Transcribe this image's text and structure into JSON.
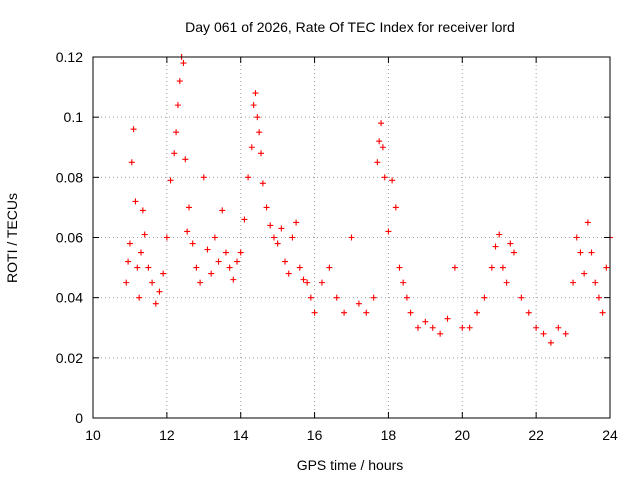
{
  "chart_data": {
    "type": "scatter",
    "title": "Day 061 of 2026, Rate Of TEC Index for receiver lord",
    "xlabel": "GPS time / hours",
    "ylabel": "ROTI / TECUs",
    "xlim": [
      10,
      24
    ],
    "ylim": [
      0,
      0.12
    ],
    "x_ticks": [
      "10",
      "12",
      "14",
      "16",
      "18",
      "20",
      "22",
      "24"
    ],
    "y_ticks": [
      "0",
      "0.02",
      "0.04",
      "0.06",
      "0.08",
      "0.1",
      "0.12"
    ],
    "grid": true,
    "marker": "plus",
    "color": "#ff0000",
    "series": [
      {
        "x": [
          10.9,
          10.95,
          11.0,
          11.05,
          11.1,
          11.15,
          11.2,
          11.25,
          11.3,
          11.35,
          11.4,
          11.5,
          11.6,
          11.7,
          11.8,
          11.9,
          12.0,
          12.1,
          12.2,
          12.25,
          12.3,
          12.35,
          12.4,
          12.45,
          12.5,
          12.55,
          12.6,
          12.7,
          12.8,
          12.9,
          13.0,
          13.1,
          13.2,
          13.3,
          13.4,
          13.5,
          13.6,
          13.7,
          13.8,
          13.9,
          14.0,
          14.1,
          14.2,
          14.3,
          14.35,
          14.4,
          14.45,
          14.5,
          14.55,
          14.6,
          14.7,
          14.8,
          14.9,
          15.0,
          15.1,
          15.2,
          15.3,
          15.4,
          15.5,
          15.6,
          15.7,
          15.8,
          15.9,
          16.0,
          16.2,
          16.4,
          16.6,
          16.8,
          17.0,
          17.2,
          17.4,
          17.6,
          17.7,
          17.75,
          17.8,
          17.85,
          17.9,
          18.0,
          18.1,
          18.2,
          18.3,
          18.4,
          18.5,
          18.6,
          18.8,
          19.0,
          19.2,
          19.4,
          19.6,
          19.8,
          20.0,
          20.2,
          20.4,
          20.6,
          20.8,
          20.9,
          21.0,
          21.1,
          21.2,
          21.3,
          21.4,
          21.6,
          21.8,
          22.0,
          22.2,
          22.4,
          22.6,
          22.8,
          23.0,
          23.1,
          23.2,
          23.3,
          23.4,
          23.5,
          23.6,
          23.7,
          23.8,
          23.9,
          24.0
        ],
        "y": [
          0.045,
          0.052,
          0.058,
          0.085,
          0.096,
          0.072,
          0.05,
          0.04,
          0.055,
          0.069,
          0.061,
          0.05,
          0.045,
          0.038,
          0.042,
          0.048,
          0.06,
          0.079,
          0.088,
          0.095,
          0.104,
          0.112,
          0.12,
          0.118,
          0.086,
          0.062,
          0.07,
          0.058,
          0.05,
          0.045,
          0.08,
          0.056,
          0.048,
          0.06,
          0.052,
          0.069,
          0.055,
          0.05,
          0.046,
          0.052,
          0.055,
          0.066,
          0.08,
          0.09,
          0.104,
          0.108,
          0.1,
          0.095,
          0.088,
          0.078,
          0.07,
          0.064,
          0.06,
          0.058,
          0.063,
          0.052,
          0.048,
          0.06,
          0.065,
          0.05,
          0.046,
          0.045,
          0.04,
          0.035,
          0.045,
          0.05,
          0.04,
          0.035,
          0.06,
          0.038,
          0.035,
          0.04,
          0.085,
          0.092,
          0.098,
          0.09,
          0.08,
          0.062,
          0.079,
          0.07,
          0.05,
          0.045,
          0.04,
          0.035,
          0.03,
          0.032,
          0.03,
          0.028,
          0.033,
          0.05,
          0.03,
          0.03,
          0.035,
          0.04,
          0.05,
          0.057,
          0.061,
          0.05,
          0.045,
          0.058,
          0.055,
          0.04,
          0.035,
          0.03,
          0.028,
          0.025,
          0.03,
          0.028,
          0.045,
          0.06,
          0.055,
          0.048,
          0.065,
          0.055,
          0.045,
          0.04,
          0.035,
          0.05,
          0.06
        ]
      }
    ]
  }
}
